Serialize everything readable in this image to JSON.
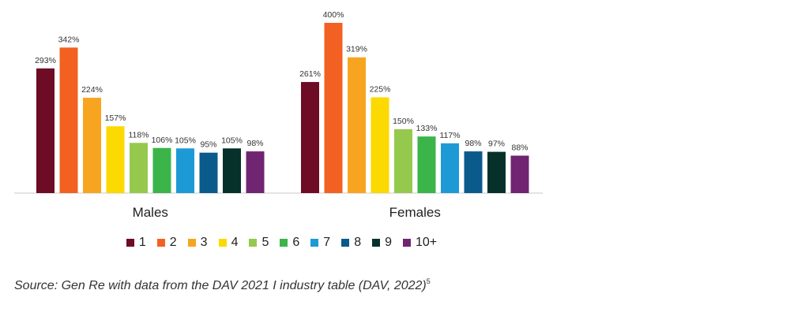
{
  "chart_data": {
    "type": "bar",
    "categories": [
      "Males",
      "Females"
    ],
    "series": [
      {
        "name": "1",
        "values": [
          293,
          261
        ],
        "labels": [
          "293%",
          "261%"
        ],
        "color": "#6d0c24"
      },
      {
        "name": "2",
        "values": [
          342,
          400
        ],
        "labels": [
          "342%",
          "400%"
        ],
        "color": "#f26122"
      },
      {
        "name": "3",
        "values": [
          224,
          319
        ],
        "labels": [
          "224%",
          "319%"
        ],
        "color": "#f7a521"
      },
      {
        "name": "4",
        "values": [
          157,
          225
        ],
        "labels": [
          "157%",
          "225%"
        ],
        "color": "#fcd900"
      },
      {
        "name": "5",
        "values": [
          118,
          150
        ],
        "labels": [
          "118%",
          "150%"
        ],
        "color": "#95c94d"
      },
      {
        "name": "6",
        "values": [
          106,
          133
        ],
        "labels": [
          "106%",
          "133%"
        ],
        "color": "#3bb44a"
      },
      {
        "name": "7",
        "values": [
          105,
          117
        ],
        "labels": [
          "105%",
          "117%"
        ],
        "color": "#1d9ad6"
      },
      {
        "name": "8",
        "values": [
          95,
          98
        ],
        "labels": [
          "95%",
          "98%"
        ],
        "color": "#0b5a8c"
      },
      {
        "name": "9",
        "values": [
          105,
          97
        ],
        "labels": [
          "105%",
          "97%"
        ],
        "color": "#05312a"
      },
      {
        "name": "10+",
        "values": [
          98,
          88
        ],
        "labels": [
          "98%",
          "88%"
        ],
        "color": "#702570"
      }
    ],
    "ylim": [
      0,
      400
    ],
    "title": "",
    "xlabel": "",
    "ylabel": "",
    "grid": false,
    "legend_position": "bottom"
  },
  "source": {
    "text": "Source: Gen Re with data from the DAV 2021 I industry table (DAV, 2022)",
    "footnote": "5"
  }
}
